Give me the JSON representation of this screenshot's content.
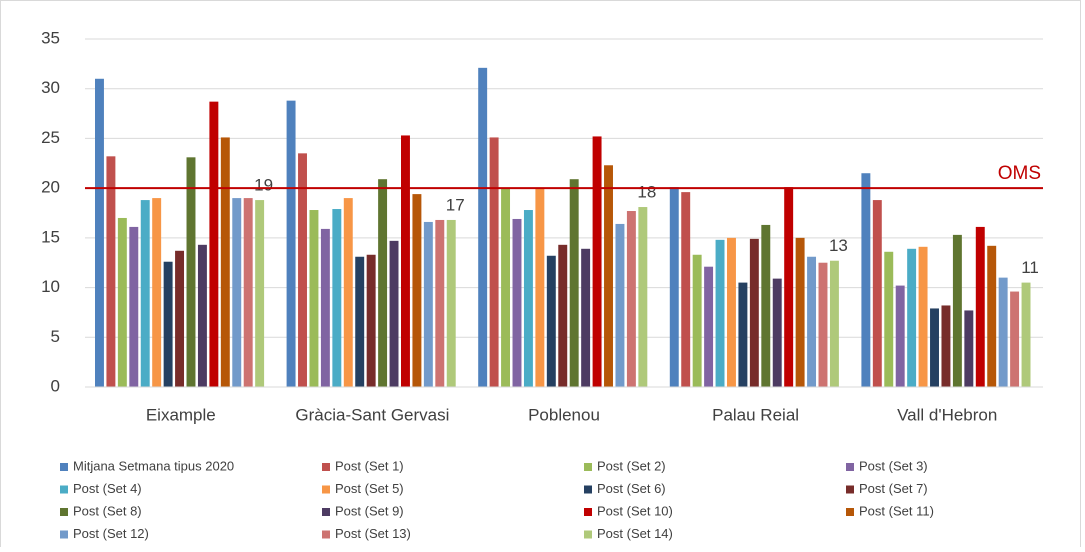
{
  "chart_data": {
    "type": "bar",
    "categories": [
      "Eixample",
      "Gràcia-Sant Gervasi",
      "Poblenou",
      "Palau Reial",
      "Vall d'Hebron"
    ],
    "series": [
      {
        "name": "Mitjana Setmana tipus 2020",
        "color": "#4f81bd",
        "values": [
          31,
          28.8,
          32.1,
          20.1,
          21.5
        ]
      },
      {
        "name": "Post (Set 1)",
        "color": "#c0504d",
        "values": [
          23.2,
          23.5,
          25.1,
          19.6,
          18.8
        ]
      },
      {
        "name": "Post (Set 2)",
        "color": "#9bbb59",
        "values": [
          17,
          17.8,
          20,
          13.3,
          13.6
        ]
      },
      {
        "name": "Post (Set 3)",
        "color": "#8064a2",
        "values": [
          16.1,
          15.9,
          16.9,
          12.1,
          10.2
        ]
      },
      {
        "name": "Post (Set 4)",
        "color": "#4bacc6",
        "values": [
          18.8,
          17.9,
          17.8,
          14.8,
          13.9
        ]
      },
      {
        "name": "Post (Set 5)",
        "color": "#f79646",
        "values": [
          19,
          19,
          20,
          15,
          14.1
        ]
      },
      {
        "name": "Post (Set 6)",
        "color": "#254061",
        "values": [
          12.6,
          13.1,
          13.2,
          10.5,
          7.9
        ]
      },
      {
        "name": "Post (Set 7)",
        "color": "#772c2a",
        "values": [
          13.7,
          13.3,
          14.3,
          14.9,
          8.2
        ]
      },
      {
        "name": "Post (Set 8)",
        "color": "#5f7530",
        "values": [
          23.1,
          20.9,
          20.9,
          16.3,
          15.3
        ]
      },
      {
        "name": "Post (Set 9)",
        "color": "#4d3b62",
        "values": [
          14.3,
          14.7,
          13.9,
          10.9,
          7.7
        ]
      },
      {
        "name": "Post (Set 10)",
        "color": "#c00000",
        "values": [
          28.7,
          25.3,
          25.2,
          20.1,
          16.1
        ]
      },
      {
        "name": "Post (Set 11)",
        "color": "#b65708",
        "values": [
          25.1,
          19.4,
          22.3,
          15,
          14.2
        ]
      },
      {
        "name": "Post (Set 12)",
        "color": "#729aca",
        "values": [
          19,
          16.6,
          16.4,
          13.1,
          11
        ]
      },
      {
        "name": "Post (Set 13)",
        "color": "#cd7371",
        "values": [
          19,
          16.8,
          17.7,
          12.5,
          9.6
        ]
      },
      {
        "name": "Post (Set 14)",
        "color": "#afc97a",
        "values": [
          18.8,
          16.8,
          18.1,
          12.7,
          10.5
        ]
      }
    ],
    "annotations": [
      "19",
      "17",
      "18",
      "13",
      "11"
    ],
    "reference_line": {
      "label": "OMS",
      "value": 20,
      "color": "#c00000"
    },
    "ylim": [
      0,
      35
    ],
    "yticks": [
      0,
      5,
      10,
      15,
      20,
      25,
      30,
      35
    ],
    "grid": true
  }
}
